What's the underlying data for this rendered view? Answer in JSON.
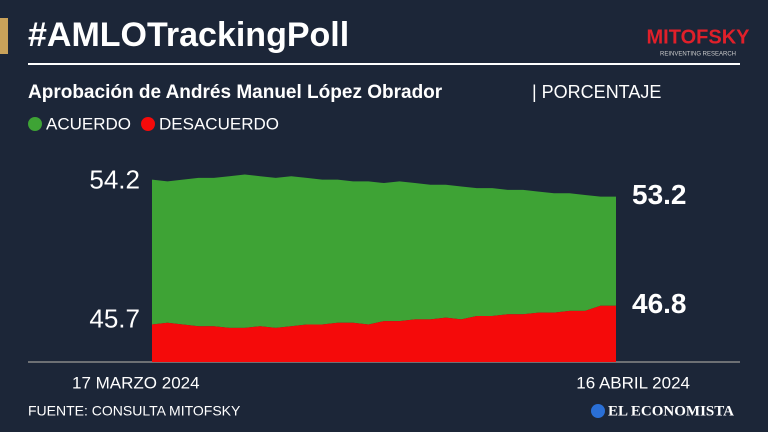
{
  "header": {
    "title": "#AMLOTrackingPoll",
    "logo": "MITOFSKY",
    "logo_tagline": "REINVENTING RESEARCH"
  },
  "chart_data": {
    "type": "area",
    "title": "Aprobación de Andrés Manuel López Obrador",
    "unit": "| PORCENTAJE",
    "x_start_label": "17 MARZO 2024",
    "x_end_label": "16 ABRIL 2024",
    "ylim": [
      43.5,
      55
    ],
    "series": [
      {
        "name": "ACUERDO",
        "color": "#3ea335",
        "values": [
          54.2,
          54.1,
          54.2,
          54.3,
          54.3,
          54.4,
          54.5,
          54.4,
          54.3,
          54.4,
          54.3,
          54.2,
          54.2,
          54.1,
          54.1,
          54.0,
          54.1,
          54.0,
          53.9,
          53.9,
          53.8,
          53.7,
          53.7,
          53.6,
          53.6,
          53.5,
          53.4,
          53.4,
          53.3,
          53.2,
          53.2
        ]
      },
      {
        "name": "DESACUERDO",
        "color": "#f50a0a",
        "values": [
          45.7,
          45.8,
          45.7,
          45.6,
          45.6,
          45.5,
          45.5,
          45.6,
          45.5,
          45.6,
          45.7,
          45.7,
          45.8,
          45.8,
          45.7,
          45.9,
          45.9,
          46.0,
          46.0,
          46.1,
          46.0,
          46.2,
          46.2,
          46.3,
          46.3,
          46.4,
          46.4,
          46.5,
          46.5,
          46.8,
          46.8
        ]
      }
    ]
  },
  "footer": {
    "source": "FUENTE: CONSULTA MITOFSKY",
    "brand": "EL ECONOMISTA"
  }
}
